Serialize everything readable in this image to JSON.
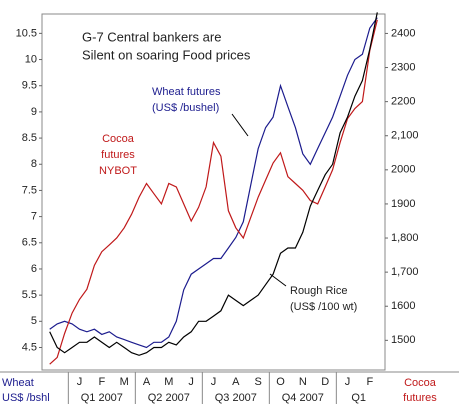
{
  "chart_data": {
    "type": "line",
    "title": [
      "G-7 Central bankers are",
      "Silent on soaring Food prices"
    ],
    "categories": [
      null,
      null,
      null,
      null,
      "J",
      null,
      null,
      "F",
      null,
      null,
      "M",
      null,
      null,
      "A",
      null,
      null,
      "M",
      null,
      null,
      "J",
      null,
      null,
      "J",
      null,
      null,
      "A",
      null,
      null,
      "S",
      null,
      null,
      "O",
      null,
      null,
      "N",
      null,
      null,
      "D",
      null,
      null,
      "J",
      null,
      null,
      "F",
      null
    ],
    "x_groups": [
      "Q1 2007",
      "Q2 2007",
      "Q3 2007",
      "Q4 2007",
      "Q1"
    ],
    "y_label": [
      "Wheat",
      "US$ /bshl"
    ],
    "y2_label": [
      "Cocoa",
      "futures"
    ],
    "ylim": [
      4.07,
      10.87
    ],
    "yticks": [
      4.5,
      5,
      5.5,
      6,
      6.5,
      7,
      7.5,
      8,
      8.5,
      9,
      9.5,
      10,
      10.5
    ],
    "y2lim": [
      1413,
      2457
    ],
    "y2ticks": [
      1500,
      1600,
      {
        "value": 1700,
        "label": "1,700"
      },
      {
        "value": 1800,
        "label": "1,800"
      },
      1900,
      2000,
      {
        "value": 2100,
        "label": "2,100"
      },
      2200,
      2300,
      2400
    ],
    "series": [
      {
        "label_lines": [
          "Wheat futures",
          "(US$ /bushel)"
        ],
        "color": "#1c1c8e",
        "values": [
          4.85,
          4.95,
          5.0,
          4.95,
          4.85,
          4.8,
          4.85,
          4.75,
          4.8,
          4.7,
          4.65,
          4.6,
          4.55,
          4.5,
          4.6,
          4.6,
          4.7,
          5.0,
          5.6,
          5.9,
          6.0,
          6.1,
          6.2,
          6.2,
          6.4,
          6.6,
          6.9,
          7.6,
          8.3,
          8.7,
          8.9,
          9.5,
          9.1,
          8.7,
          8.2,
          8.0,
          8.3,
          8.6,
          8.9,
          9.3,
          9.7,
          10.0,
          10.1,
          10.6,
          10.8
        ]
      },
      {
        "label_lines": [
          "Cocoa",
          "futures",
          "NYBOT"
        ],
        "color": "#c0191a",
        "axis": "y2",
        "values": [
          1430,
          1450,
          1520,
          1580,
          1620,
          1650,
          1720,
          1760,
          1780,
          1800,
          1830,
          1870,
          1920,
          1960,
          1930,
          1900,
          1960,
          1950,
          1900,
          1850,
          1890,
          1950,
          2080,
          2040,
          1880,
          1830,
          1800,
          1860,
          1920,
          1970,
          2020,
          2050,
          1980,
          1960,
          1940,
          1910,
          1900,
          1950,
          2000,
          2080,
          2150,
          2180,
          2200,
          2350,
          2440
        ]
      },
      {
        "label_lines": [
          "Rough Rice",
          "(US$ /100 wt)"
        ],
        "color": "#000000",
        "values": [
          4.8,
          4.5,
          4.4,
          4.5,
          4.6,
          4.6,
          4.7,
          4.6,
          4.5,
          4.6,
          4.5,
          4.4,
          4.35,
          4.4,
          4.5,
          4.5,
          4.6,
          4.55,
          4.7,
          4.8,
          5.0,
          5.0,
          5.1,
          5.2,
          5.5,
          5.4,
          5.3,
          5.4,
          5.5,
          5.7,
          5.9,
          6.3,
          6.4,
          6.4,
          6.7,
          7.2,
          7.5,
          7.8,
          8.0,
          8.6,
          8.9,
          9.3,
          9.6,
          10.2,
          10.9
        ]
      }
    ]
  }
}
